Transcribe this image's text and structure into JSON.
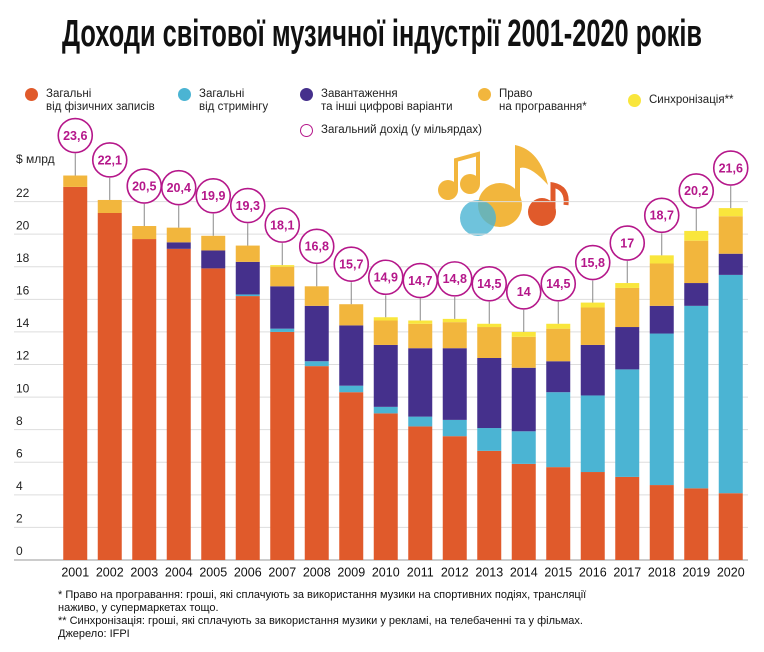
{
  "chart_data": {
    "type": "bar",
    "stacked": true,
    "title": "Доходи світової музичної індустрії 2001-2020 років",
    "y_label": "$ млрд",
    "categories": [
      "2001",
      "2002",
      "2003",
      "2004",
      "2005",
      "2006",
      "2007",
      "2008",
      "2009",
      "2010",
      "2011",
      "2012",
      "2013",
      "2014",
      "2015",
      "2016",
      "2017",
      "2018",
      "2019",
      "2020"
    ],
    "series": [
      {
        "name": "Загальні\nвід фізичних записів",
        "color": "#e05a2b",
        "values": [
          22.9,
          21.3,
          19.7,
          19.1,
          17.9,
          16.2,
          14.0,
          11.9,
          10.3,
          9.0,
          8.2,
          7.6,
          6.7,
          5.9,
          5.7,
          5.4,
          5.1,
          4.6,
          4.4,
          4.1
        ]
      },
      {
        "name": "Загальні\nвід стримінгу",
        "color": "#4bb4d3",
        "values": [
          0,
          0,
          0,
          0,
          0,
          0.1,
          0.2,
          0.3,
          0.4,
          0.4,
          0.6,
          1.0,
          1.4,
          2.0,
          4.6,
          4.7,
          6.6,
          9.3,
          11.2,
          13.4
        ]
      },
      {
        "name": "Завантаження\nта інші цифрові варіанти",
        "color": "#45308c",
        "values": [
          0,
          0,
          0,
          0.4,
          1.1,
          2.0,
          2.6,
          3.4,
          3.7,
          3.8,
          4.2,
          4.4,
          4.3,
          3.9,
          1.9,
          3.1,
          2.6,
          1.7,
          1.4,
          1.3
        ]
      },
      {
        "name": "Право\nна програвання*",
        "color": "#f2b63d",
        "values": [
          0.7,
          0.8,
          0.8,
          0.9,
          0.9,
          1.0,
          1.2,
          1.2,
          1.3,
          1.5,
          1.5,
          1.6,
          1.9,
          1.9,
          2.0,
          2.3,
          2.4,
          2.6,
          2.6,
          2.3
        ]
      },
      {
        "name": "Синхронізація**",
        "color": "#f9e63c",
        "values": [
          0,
          0,
          0,
          0,
          0,
          0,
          0.1,
          0,
          0,
          0.2,
          0.2,
          0.2,
          0.2,
          0.3,
          0.3,
          0.3,
          0.3,
          0.5,
          0.6,
          0.5
        ]
      }
    ],
    "totals": {
      "name": "Загальний дохід (у мільярдах)",
      "color": "#b5178a",
      "values": [
        23.6,
        22.1,
        20.5,
        20.4,
        19.9,
        19.3,
        18.1,
        16.8,
        15.7,
        14.9,
        14.7,
        14.8,
        14.5,
        14,
        14.5,
        15.8,
        17,
        18.7,
        20.2,
        21.6
      ],
      "value_labels": [
        "23,6",
        "22,1",
        "20,5",
        "20,4",
        "19,9",
        "19,3",
        "18,1",
        "16,8",
        "15,7",
        "14,9",
        "14,7",
        "14,8",
        "14,5",
        "14",
        "14,5",
        "15,8",
        "17",
        "18,7",
        "20,2",
        "21,6"
      ]
    },
    "ylim": [
      0,
      24
    ],
    "yticks": [
      0,
      2,
      4,
      6,
      8,
      10,
      12,
      14,
      16,
      18,
      20,
      22
    ],
    "grid": true
  },
  "notes": [
    "* Право на програвання: гроші, які сплачують за використання музики на спортивних подіях, трансляції наживо, у супермаркетах тощо.",
    "** Синхронізація: гроші, які сплачують за використання музики у рекламі, на телебаченні та у фільмах.",
    "Джерело: IFPI"
  ]
}
